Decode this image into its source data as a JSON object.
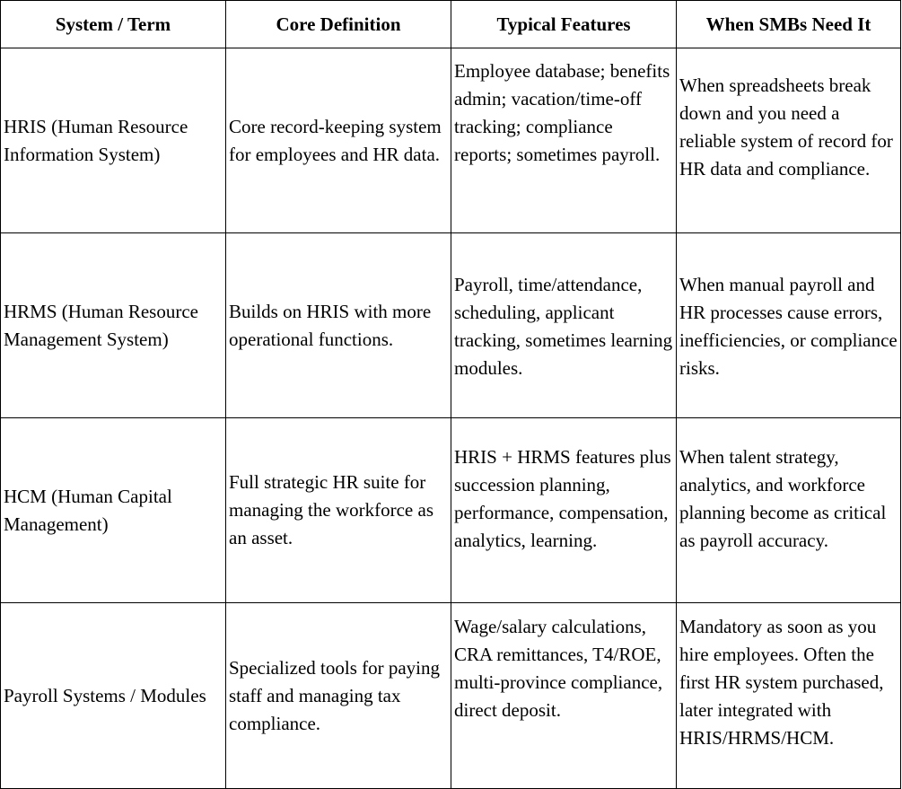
{
  "table": {
    "headers": [
      "System / Term",
      "Core Definition",
      "Typical Features",
      "When SMBs Need It"
    ],
    "rows": [
      {
        "term": "HRIS (Human Resource Information System)",
        "definition": "Core record-keeping system for employees and HR data.",
        "features": "Employee database; benefits admin; vacation/time-off tracking; compliance reports; sometimes payroll.",
        "need": "When spreadsheets break down and you need a reliable system of record for HR data and compliance."
      },
      {
        "term": "HRMS (Human Resource Management System)",
        "definition": "Builds on HRIS with more operational functions.",
        "features": "Payroll, time/attendance, scheduling, applicant tracking, sometimes learning modules.",
        "need": "When manual payroll and HR processes cause errors, inefficiencies, or compliance risks."
      },
      {
        "term": "HCM (Human Capital Management)",
        "definition": "Full strategic HR suite for managing the workforce as an asset.",
        "features": "HRIS + HRMS features plus succession planning, performance, compensation, analytics, learning.",
        "need": "When talent strategy, analytics, and workforce planning become as critical as payroll accuracy."
      },
      {
        "term": "Payroll Systems / Modules",
        "definition": "Specialized tools for paying staff and managing tax compliance.",
        "features": "Wage/salary calculations, CRA remittances, T4/ROE, multi-province compliance, direct deposit.",
        "need": "Mandatory as soon as you hire employees. Often the first HR system purchased, later integrated with HRIS/HRMS/HCM."
      }
    ]
  }
}
